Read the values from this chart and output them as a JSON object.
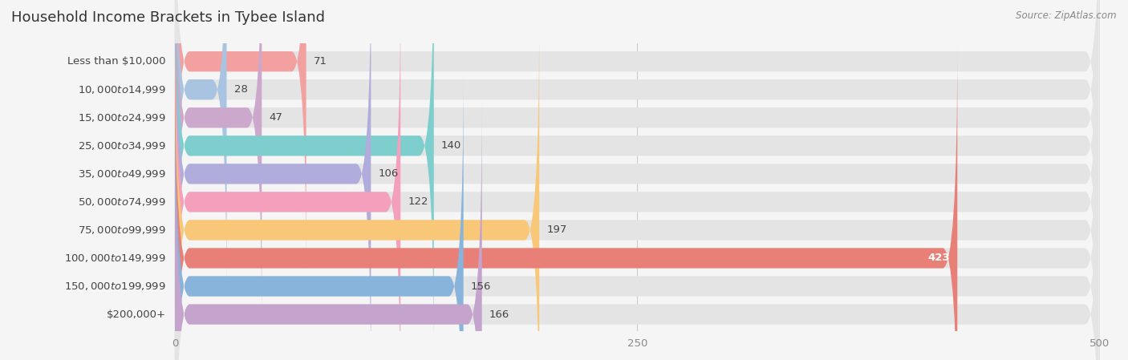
{
  "title": "Household Income Brackets in Tybee Island",
  "source": "Source: ZipAtlas.com",
  "categories": [
    "Less than $10,000",
    "$10,000 to $14,999",
    "$15,000 to $24,999",
    "$25,000 to $34,999",
    "$35,000 to $49,999",
    "$50,000 to $74,999",
    "$75,000 to $99,999",
    "$100,000 to $149,999",
    "$150,000 to $199,999",
    "$200,000+"
  ],
  "values": [
    71,
    28,
    47,
    140,
    106,
    122,
    197,
    423,
    156,
    166
  ],
  "bar_colors": [
    "#F2A0A0",
    "#A8C4E0",
    "#CCA8CC",
    "#7ECECE",
    "#B0ACDC",
    "#F4A0BC",
    "#F8C878",
    "#E88078",
    "#88B4DC",
    "#C4A4CC"
  ],
  "label_colors": [
    "#555555",
    "#555555",
    "#555555",
    "#555555",
    "#555555",
    "#555555",
    "#555555",
    "#ffffff",
    "#555555",
    "#555555"
  ],
  "xlim": [
    0,
    500
  ],
  "xticks": [
    0,
    250,
    500
  ],
  "background_color": "#f5f5f5",
  "bar_bg_color": "#e4e4e4",
  "title_fontsize": 13,
  "label_fontsize": 9.5,
  "value_fontsize": 9.5
}
